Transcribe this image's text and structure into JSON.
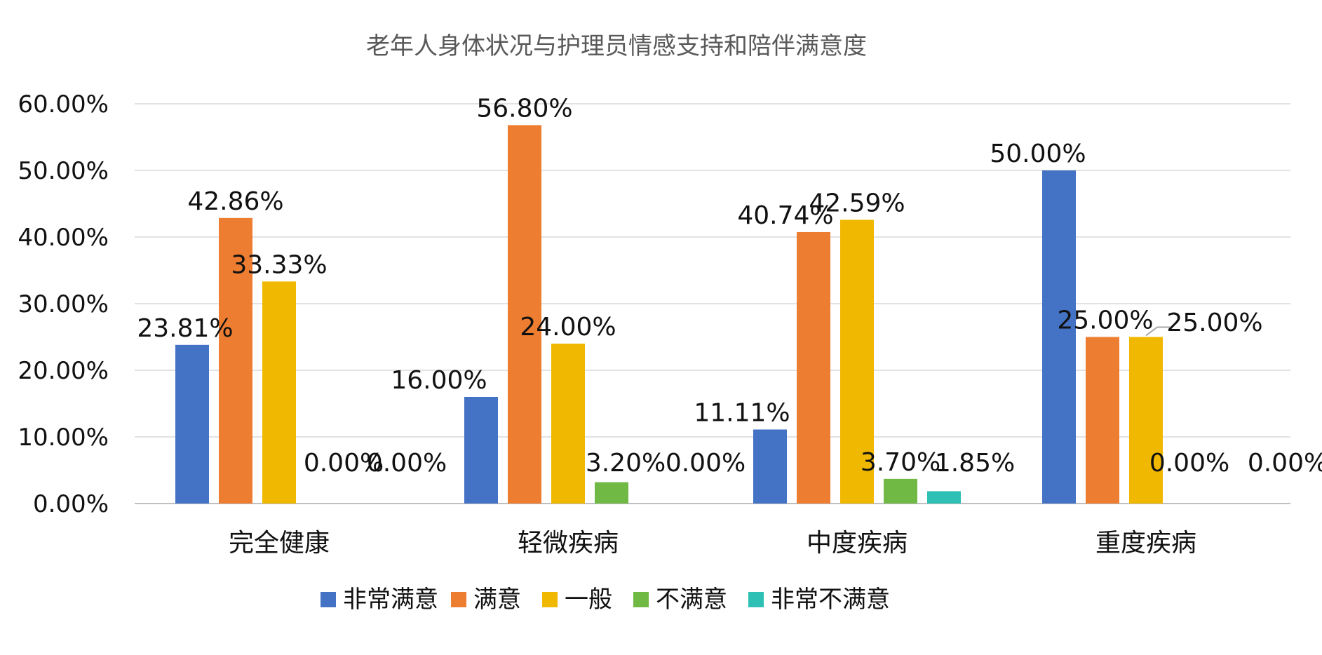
{
  "chart_data": {
    "type": "bar",
    "title": "老年人身体状况与护理员情感支持和陪伴满意度",
    "xlabel": "",
    "ylabel": "",
    "categories": [
      "完全健康",
      "轻微疾病",
      "中度疾病",
      "重度疾病"
    ],
    "series": [
      {
        "name": "非常满意",
        "color": "#4472C4",
        "values": [
          23.81,
          16.0,
          11.11,
          50.0
        ],
        "labels": [
          "23.81%",
          "16.00%",
          "11.11%",
          "50.00%"
        ]
      },
      {
        "name": "满意",
        "color": "#ED7D31",
        "values": [
          42.86,
          56.8,
          40.74,
          25.0
        ],
        "labels": [
          "42.86%",
          "56.80%",
          "40.74%",
          "25.00%"
        ]
      },
      {
        "name": "一般",
        "color": "#F0B800",
        "values": [
          33.33,
          24.0,
          42.59,
          25.0
        ],
        "labels": [
          "33.33%",
          "24.00%",
          "42.59%",
          "25.00%"
        ]
      },
      {
        "name": "不满意",
        "color": "#70B944",
        "values": [
          0.0,
          3.2,
          3.7,
          0.0
        ],
        "labels": [
          "0.00%",
          "3.20%",
          "3.70%",
          "0.00%"
        ]
      },
      {
        "name": "非常不满意",
        "color": "#2EBFB5",
        "values": [
          0.0,
          0.0,
          1.85,
          0.0
        ],
        "labels": [
          "0.00%",
          "0.00%",
          "1.85%",
          "0.00%"
        ]
      }
    ],
    "yticks": [
      "0.00%",
      "10.00%",
      "20.00%",
      "30.00%",
      "40.00%",
      "50.00%",
      "60.00%"
    ],
    "ylim": [
      0,
      60
    ],
    "grid": true,
    "legend_position": "bottom"
  }
}
